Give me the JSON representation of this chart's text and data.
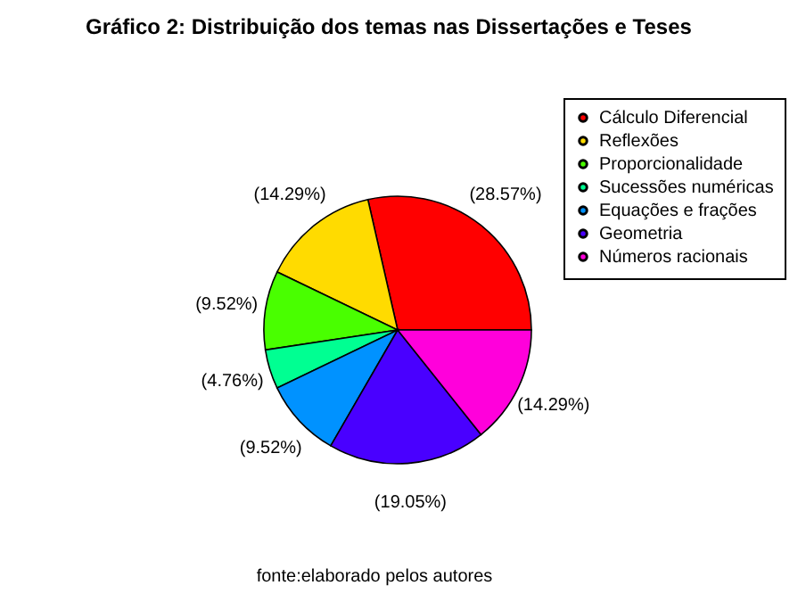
{
  "chart_data": {
    "type": "pie",
    "title": "Gráfico 2: Distribuição dos temas nas Dissertações e Teses",
    "categories": [
      "Cálculo Diferencial",
      "Reflexões",
      "Proporcionalidade",
      "Sucessões numéricas",
      "Equações e frações",
      "Geometria",
      "Números racionais"
    ],
    "values": [
      28.57,
      14.29,
      9.52,
      4.76,
      9.52,
      19.05,
      14.29
    ],
    "colors": [
      "#ff0000",
      "#ffdb00",
      "#49ff00",
      "#00ff92",
      "#0092ff",
      "#4900ff",
      "#ff00db"
    ],
    "value_labels": [
      "(28.57%)",
      "(14.29%)",
      "(9.52%)",
      "(4.76%)",
      "(9.52%)",
      "(19.05%)",
      "(14.29%)"
    ],
    "legend": "top right",
    "annotations": [
      "fonte:elaborado pelos autores"
    ]
  }
}
